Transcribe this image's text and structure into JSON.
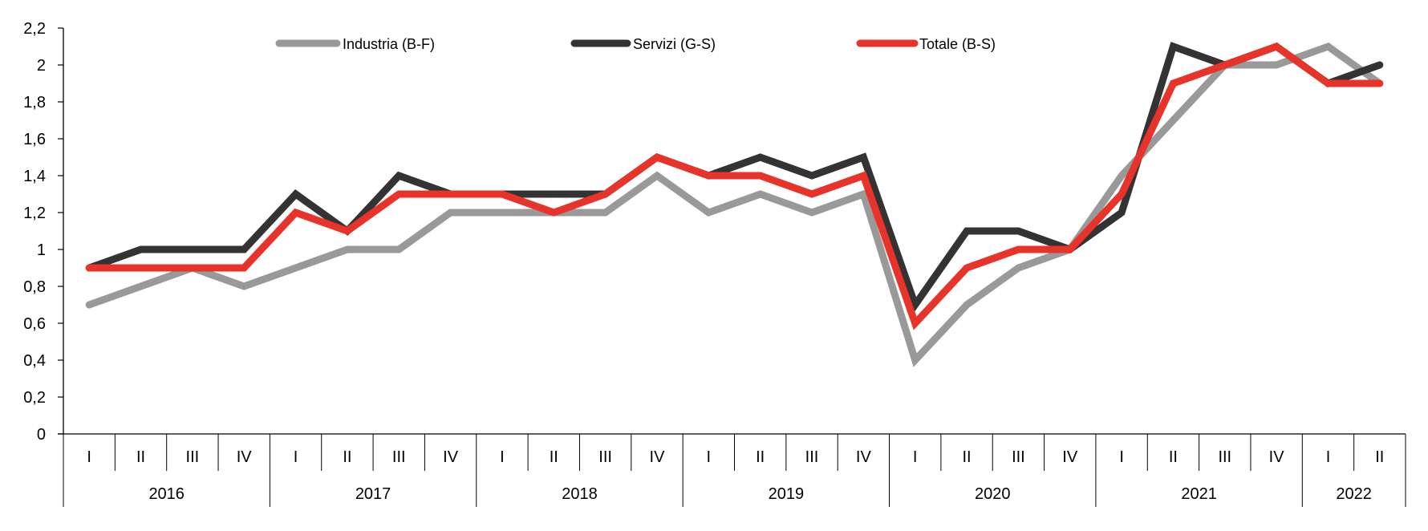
{
  "chart_data": {
    "type": "line",
    "title": "",
    "xlabel": "",
    "ylabel": "",
    "ylim": [
      0,
      2.2
    ],
    "yticks": [
      "0",
      "0,2",
      "0,4",
      "0,6",
      "0,8",
      "1",
      "1,2",
      "1,4",
      "1,6",
      "1,8",
      "2",
      "2,2"
    ],
    "grid": false,
    "legend_position": "top",
    "quarters": [
      "I",
      "II",
      "III",
      "IV",
      "I",
      "II",
      "III",
      "IV",
      "I",
      "II",
      "III",
      "IV",
      "I",
      "II",
      "III",
      "IV",
      "I",
      "II",
      "III",
      "IV",
      "I",
      "II",
      "III",
      "IV",
      "I",
      "II"
    ],
    "years": [
      {
        "label": "2016",
        "quarters": 4
      },
      {
        "label": "2017",
        "quarters": 4
      },
      {
        "label": "2018",
        "quarters": 4
      },
      {
        "label": "2019",
        "quarters": 4
      },
      {
        "label": "2020",
        "quarters": 4
      },
      {
        "label": "2021",
        "quarters": 4
      },
      {
        "label": "2022",
        "quarters": 2
      }
    ],
    "series": [
      {
        "name": "Industria (B-F)",
        "color": "#999999",
        "values": [
          0.7,
          0.8,
          0.9,
          0.8,
          0.9,
          1.0,
          1.0,
          1.2,
          1.2,
          1.2,
          1.2,
          1.4,
          1.2,
          1.3,
          1.2,
          1.3,
          0.4,
          0.7,
          0.9,
          1.0,
          1.4,
          1.7,
          2.0,
          2.0,
          2.1,
          1.9
        ]
      },
      {
        "name": "Servizi (G-S)",
        "color": "#333333",
        "values": [
          0.9,
          1.0,
          1.0,
          1.0,
          1.3,
          1.1,
          1.4,
          1.3,
          1.3,
          1.3,
          1.3,
          1.5,
          1.4,
          1.5,
          1.4,
          1.5,
          0.7,
          1.1,
          1.1,
          1.0,
          1.2,
          2.1,
          2.0,
          2.1,
          1.9,
          2.0
        ]
      },
      {
        "name": "Totale (B-S)",
        "color": "#e8332a",
        "values": [
          0.9,
          0.9,
          0.9,
          0.9,
          1.2,
          1.1,
          1.3,
          1.3,
          1.3,
          1.2,
          1.3,
          1.5,
          1.4,
          1.4,
          1.3,
          1.4,
          0.6,
          0.9,
          1.0,
          1.0,
          1.3,
          1.9,
          2.0,
          2.1,
          1.9,
          1.9
        ]
      }
    ]
  }
}
